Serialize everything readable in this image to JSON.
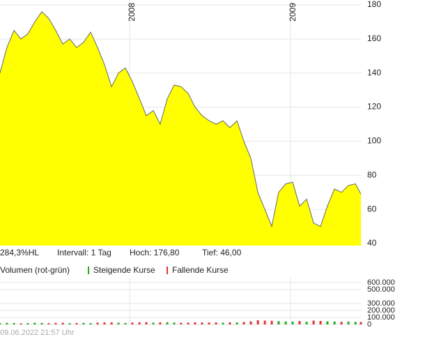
{
  "chart_data": [
    {
      "type": "area",
      "color": "#ffff00",
      "line_color": "#666666",
      "x": [
        2007.195,
        2007.238,
        2007.282,
        2007.325,
        2007.368,
        2007.411,
        2007.455,
        2007.498,
        2007.541,
        2007.585,
        2007.628,
        2007.671,
        2007.714,
        2007.758,
        2007.801,
        2007.844,
        2007.888,
        2007.931,
        2007.974,
        2008.017,
        2008.061,
        2008.104,
        2008.147,
        2008.19,
        2008.234,
        2008.277,
        2008.32,
        2008.364,
        2008.407,
        2008.45,
        2008.494,
        2008.537,
        2008.58,
        2008.623,
        2008.667,
        2008.71,
        2008.753,
        2008.797,
        2008.84,
        2008.883,
        2008.926,
        2008.97,
        2009.013,
        2009.056,
        2009.1,
        2009.143,
        2009.186,
        2009.229,
        2009.273,
        2009.316,
        2009.359,
        2009.403,
        2009.437
      ],
      "values": [
        140,
        155,
        165,
        160,
        163,
        170,
        176,
        172,
        165,
        157,
        160,
        155,
        158,
        164,
        155,
        145,
        132,
        140,
        143,
        135,
        125,
        115,
        118,
        110,
        125,
        133,
        132,
        128,
        120,
        115,
        112,
        110,
        112,
        108,
        112,
        100,
        90,
        70,
        60,
        50,
        70,
        75,
        76,
        62,
        66,
        52,
        50,
        62,
        72,
        70,
        74,
        75,
        69
      ],
      "xlim": [
        2007.195,
        2009.437
      ],
      "xticks": [
        2008,
        2009
      ],
      "ylim": [
        40,
        180
      ],
      "yticks": [
        40,
        60,
        80,
        100,
        120,
        140,
        160,
        180
      ],
      "grid": true,
      "info": [
        "284,3%HL",
        "Intervall: 1 Tag",
        "Hoch: 176,80",
        "Tief: 46,00"
      ]
    },
    {
      "type": "bar",
      "title": "Volumen (rot-grün)",
      "x": [
        2007.195,
        2007.238,
        2007.282,
        2007.325,
        2007.368,
        2007.411,
        2007.455,
        2007.498,
        2007.541,
        2007.585,
        2007.628,
        2007.671,
        2007.714,
        2007.758,
        2007.801,
        2007.844,
        2007.888,
        2007.931,
        2007.974,
        2008.017,
        2008.061,
        2008.104,
        2008.147,
        2008.19,
        2008.234,
        2008.277,
        2008.32,
        2008.364,
        2008.407,
        2008.45,
        2008.494,
        2008.537,
        2008.58,
        2008.623,
        2008.667,
        2008.71,
        2008.753,
        2008.797,
        2008.84,
        2008.883,
        2008.926,
        2008.97,
        2009.013,
        2009.056,
        2009.1,
        2009.143,
        2009.186,
        2009.229,
        2009.273,
        2009.316,
        2009.359,
        2009.403,
        2009.437
      ],
      "series": [
        {
          "name": "Steigende Kurse",
          "color": "#22aa22",
          "values": [
            18000,
            22000,
            20000,
            null,
            19000,
            24000,
            21000,
            null,
            null,
            null,
            18000,
            null,
            22000,
            19000,
            null,
            null,
            null,
            24000,
            21000,
            null,
            null,
            null,
            25000,
            null,
            31000,
            27000,
            null,
            null,
            null,
            null,
            null,
            null,
            25000,
            null,
            28000,
            null,
            null,
            null,
            null,
            null,
            48000,
            42000,
            40000,
            null,
            38000,
            null,
            null,
            45000,
            42000,
            null,
            40000,
            36000,
            null
          ]
        },
        {
          "name": "Fallende Kurse",
          "color": "#dd3333",
          "values": [
            null,
            null,
            null,
            16000,
            null,
            null,
            null,
            17000,
            23000,
            25000,
            null,
            20000,
            null,
            null,
            26000,
            28000,
            30000,
            null,
            null,
            27000,
            30000,
            32000,
            null,
            29000,
            null,
            null,
            24000,
            26000,
            30000,
            28000,
            27000,
            29000,
            null,
            30000,
            null,
            35000,
            45000,
            60000,
            55000,
            52000,
            null,
            null,
            null,
            50000,
            null,
            55000,
            50000,
            null,
            null,
            38000,
            null,
            null,
            35000
          ]
        }
      ],
      "xlim": [
        2007.195,
        2009.437
      ],
      "xticks": [
        2008,
        2009
      ],
      "ylim": [
        0,
        600000
      ],
      "yticks": [
        0,
        {
          "value": 100000,
          "label": "100.000"
        },
        {
          "value": 200000,
          "label": "200.000"
        },
        {
          "value": 300000,
          "label": "300.000"
        },
        {
          "value": 500000,
          "label": "500.000"
        },
        {
          "value": 600000,
          "label": "600.000"
        }
      ],
      "grid": true
    }
  ],
  "timestamp": "09.06.2022 21:57 Uhr"
}
